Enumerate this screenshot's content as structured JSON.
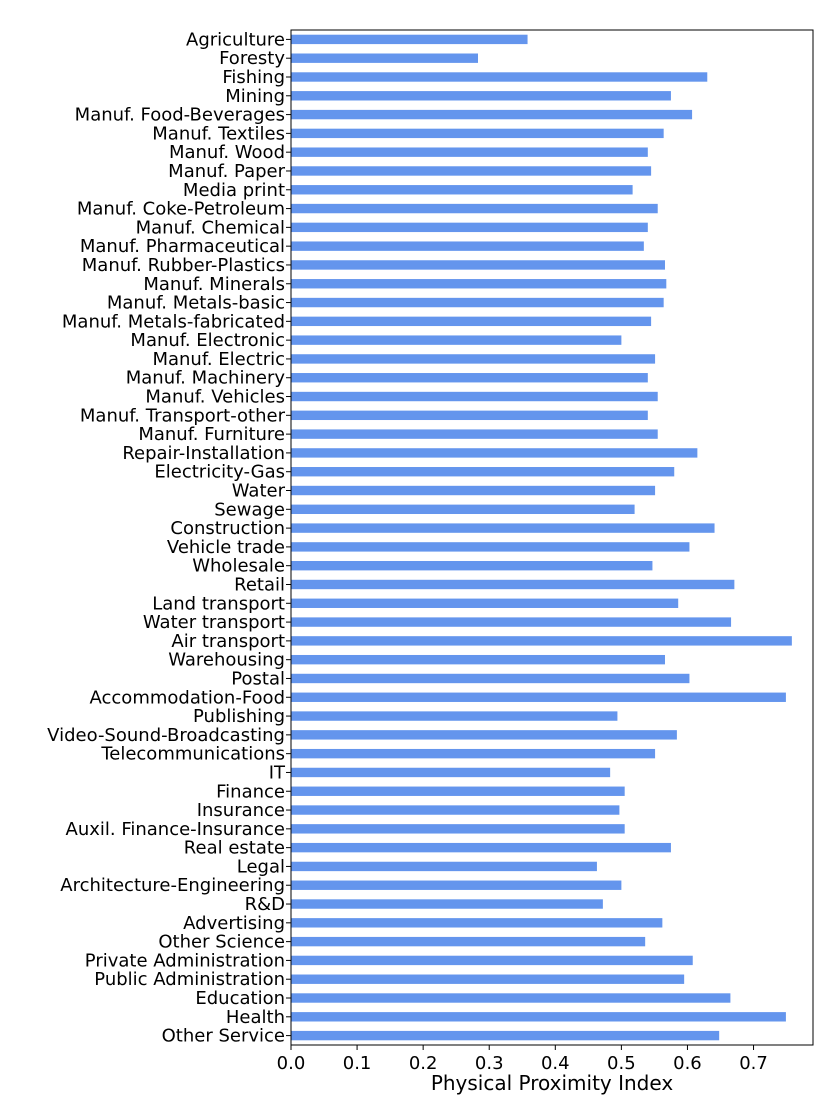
{
  "chart_data": {
    "type": "bar",
    "orientation": "horizontal",
    "xlabel": "Physical Proximity Index",
    "ylabel": "",
    "xlim": [
      0,
      0.79
    ],
    "xticks": [
      "0.0",
      "0.1",
      "0.2",
      "0.3",
      "0.4",
      "0.5",
      "0.6",
      "0.7"
    ],
    "grid": false,
    "bar_color": "#6495ed",
    "categories": [
      "Agriculture",
      "Foresty",
      "Fishing",
      "Mining",
      "Manuf. Food-Beverages",
      "Manuf. Textiles",
      "Manuf. Wood",
      "Manuf. Paper",
      "Media print",
      "Manuf. Coke-Petroleum",
      "Manuf. Chemical",
      "Manuf. Pharmaceutical",
      "Manuf. Rubber-Plastics",
      "Manuf. Minerals",
      "Manuf. Metals-basic",
      "Manuf. Metals-fabricated",
      "Manuf. Electronic",
      "Manuf. Electric",
      "Manuf. Machinery",
      "Manuf. Vehicles",
      "Manuf. Transport-other",
      "Manuf. Furniture",
      "Repair-Installation",
      "Electricity-Gas",
      "Water",
      "Sewage",
      "Construction",
      "Vehicle trade",
      "Wholesale",
      "Retail",
      "Land transport",
      "Water transport",
      "Air transport",
      "Warehousing",
      "Postal",
      "Accommodation-Food",
      "Publishing",
      "Video-Sound-Broadcasting",
      "Telecommunications",
      "IT",
      "Finance",
      "Insurance",
      "Auxil. Finance-Insurance",
      "Real estate",
      "Legal",
      "Architecture-Engineering",
      "R&D",
      "Advertising",
      "Other Science",
      "Private Administration",
      "Public Administration",
      "Education",
      "Health",
      "Other Service"
    ],
    "values": [
      0.358,
      0.283,
      0.63,
      0.575,
      0.607,
      0.564,
      0.54,
      0.545,
      0.517,
      0.555,
      0.54,
      0.534,
      0.566,
      0.568,
      0.564,
      0.545,
      0.5,
      0.551,
      0.54,
      0.555,
      0.54,
      0.555,
      0.615,
      0.58,
      0.551,
      0.52,
      0.641,
      0.603,
      0.547,
      0.671,
      0.586,
      0.666,
      0.758,
      0.566,
      0.603,
      0.749,
      0.494,
      0.584,
      0.551,
      0.483,
      0.505,
      0.497,
      0.505,
      0.575,
      0.463,
      0.5,
      0.472,
      0.562,
      0.536,
      0.608,
      0.595,
      0.665,
      0.749,
      0.648
    ]
  }
}
